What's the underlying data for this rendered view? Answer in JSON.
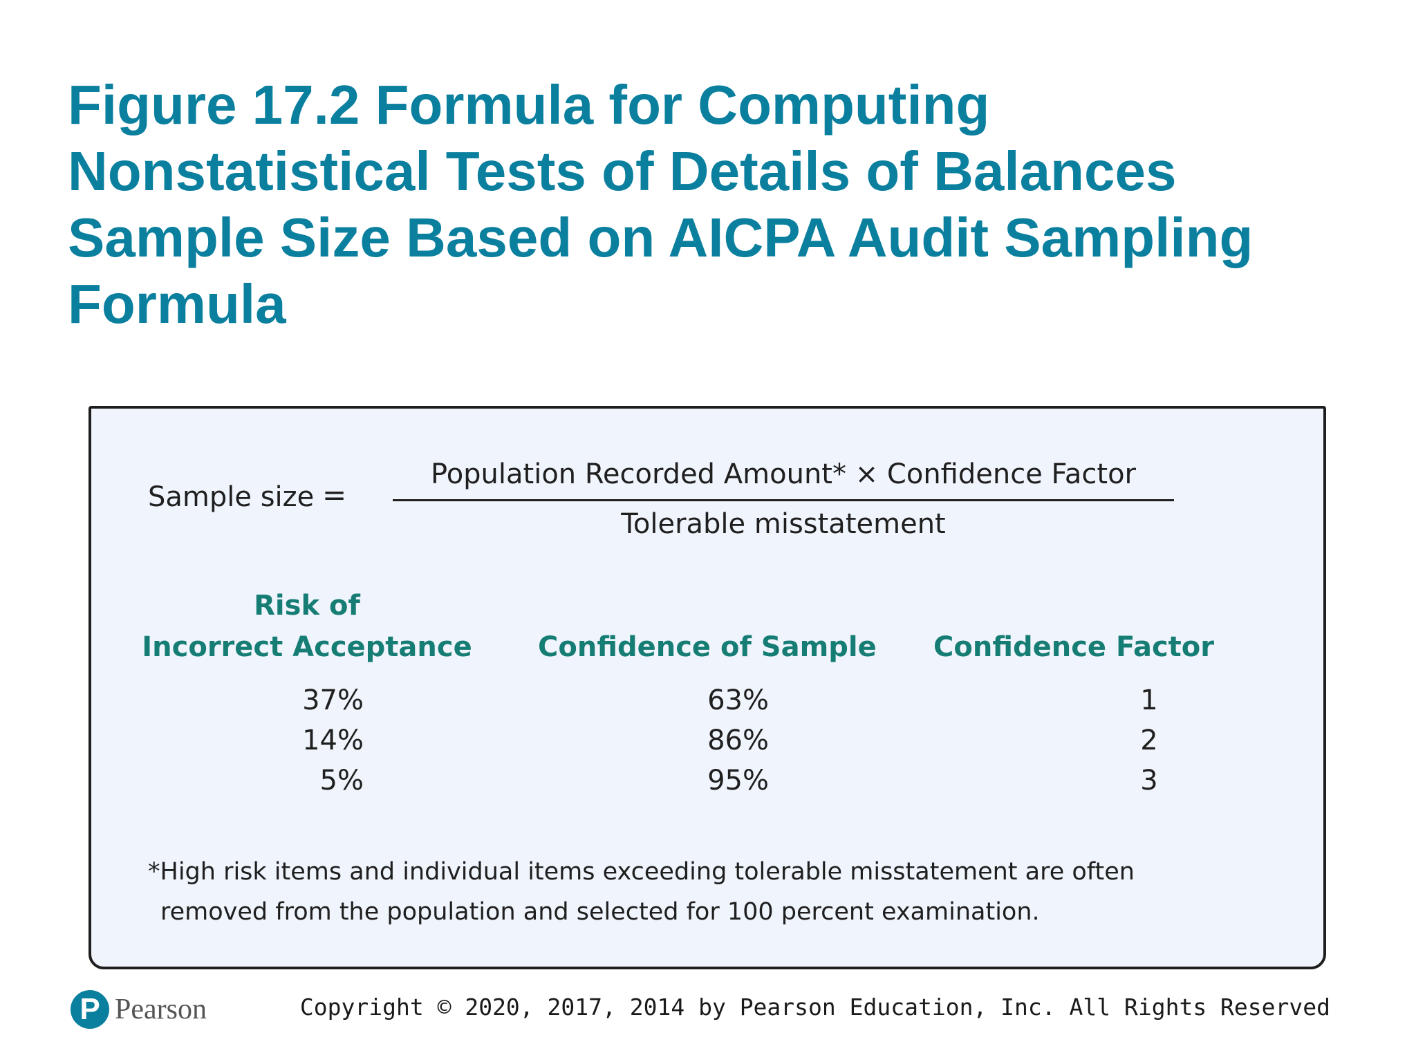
{
  "slide": {
    "title": "Figure 17.2 Formula for Computing Nonstatistical Tests of Details of Balances Sample Size Based on AICPA Audit Sampling Formula"
  },
  "formula": {
    "label": "Sample size",
    "equals": "=",
    "numerator": "Population Recorded Amount* × Confidence Factor",
    "denominator": "Tolerable misstatement"
  },
  "table": {
    "headers": [
      [
        "Risk of",
        "Incorrect Acceptance"
      ],
      [
        "Confidence of Sample"
      ],
      [
        "Confidence Factor"
      ]
    ],
    "rows": [
      [
        "37%",
        "63%",
        "1"
      ],
      [
        "14%",
        "86%",
        "2"
      ],
      [
        "5%",
        "95%",
        "3"
      ]
    ]
  },
  "footnote": {
    "line1": "*High risk items and individual items exceeding tolerable misstatement are often",
    "line2": "removed from the population and selected for 100 percent examination."
  },
  "footer": {
    "logo_letter": "P",
    "logo_text": "Pearson",
    "copyright": "Copyright © 2020, 2017, 2014 by Pearson Education, Inc. All Rights Reserved"
  },
  "colors": {
    "title": "#0a7f9e",
    "header": "#167d74",
    "box_background": "#f0f4fc"
  }
}
